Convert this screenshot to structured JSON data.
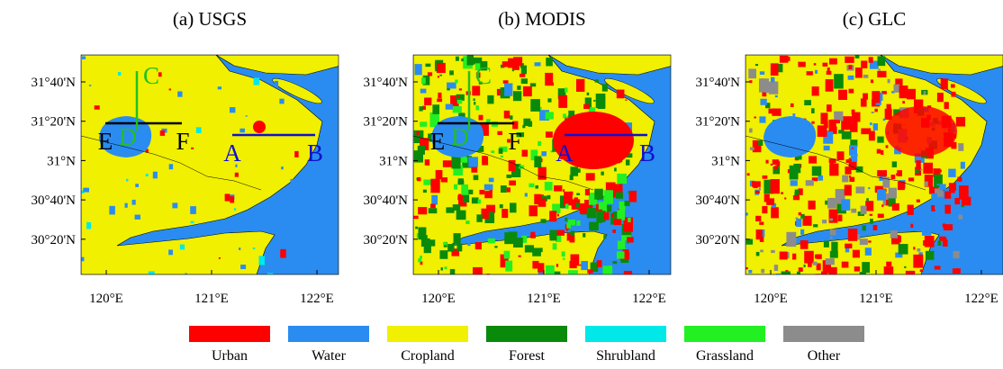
{
  "panels": [
    {
      "title": "(a) USGS"
    },
    {
      "title": "(b) MODIS"
    },
    {
      "title": "(c) GLC"
    }
  ],
  "xticks": [
    "120°E",
    "121°E",
    "122°E"
  ],
  "yticks": [
    "31°40'N",
    "31°20'N",
    "31°N",
    "30°40'N",
    "30°20'N"
  ],
  "annotations": [
    {
      "label": "A",
      "color": "#1010d0"
    },
    {
      "label": "B",
      "color": "#1010d0"
    },
    {
      "label": "C",
      "color": "#22c022"
    },
    {
      "label": "D",
      "color": "#22c022"
    },
    {
      "label": "E",
      "color": "#000000"
    },
    {
      "label": "F",
      "color": "#000000"
    }
  ],
  "legend": [
    {
      "label": "Urban",
      "color": "#ff0000"
    },
    {
      "label": "Water",
      "color": "#2a8cf0"
    },
    {
      "label": "Cropland",
      "color": "#f0f000"
    },
    {
      "label": "Forest",
      "color": "#0a8a0a"
    },
    {
      "label": "Shrubland",
      "color": "#00e8e8"
    },
    {
      "label": "Grassland",
      "color": "#22f022"
    },
    {
      "label": "Other",
      "color": "#8c8c8c"
    }
  ]
}
